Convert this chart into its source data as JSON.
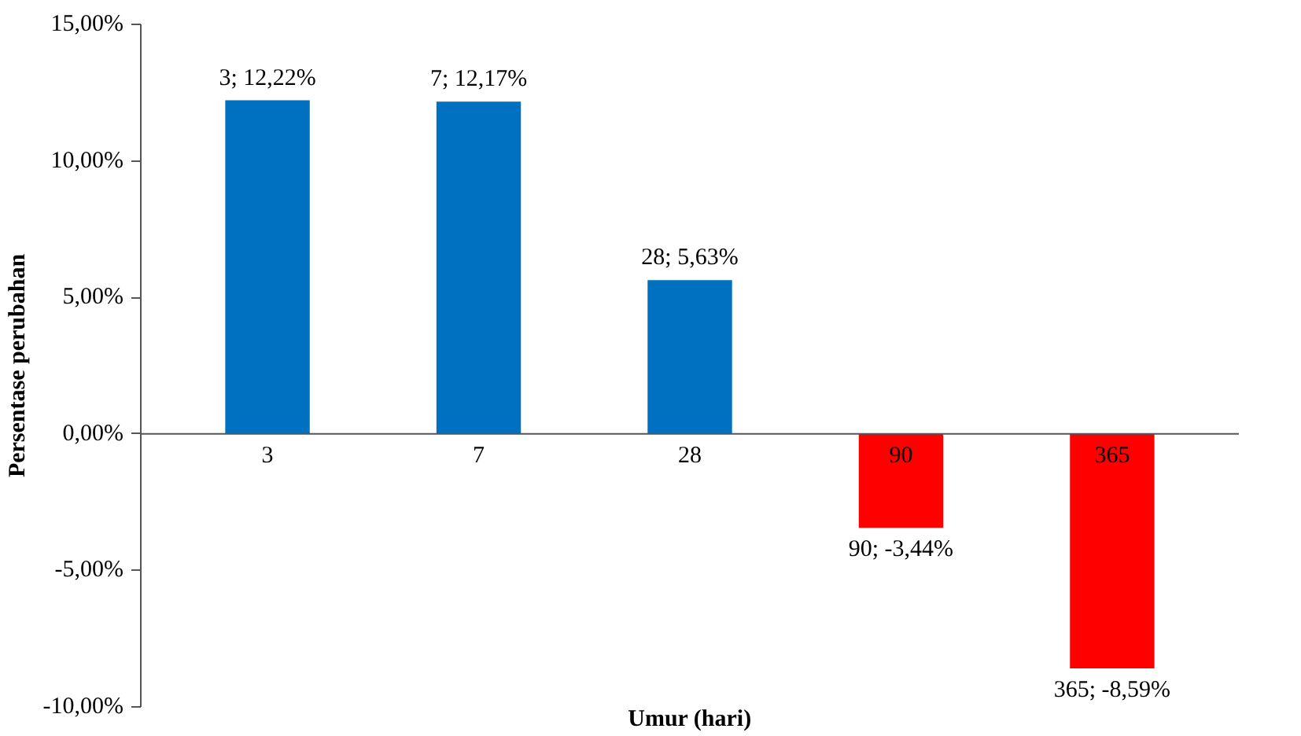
{
  "chart_data": {
    "type": "bar",
    "xlabel": "Umur (hari)",
    "ylabel": "Persentase perubahan",
    "categories": [
      "3",
      "7",
      "28",
      "90",
      "365"
    ],
    "values": [
      12.22,
      12.17,
      5.63,
      -3.44,
      -8.59
    ],
    "colors": [
      "#0070c0",
      "#0070c0",
      "#0070c0",
      "#ff0000",
      "#ff0000"
    ],
    "value_labels": [
      "3; 12,22%",
      "7; 12,17%",
      "28; 5,63%",
      "90; -3,44%",
      "365; -8,59%"
    ],
    "ylim": [
      -10,
      15
    ],
    "yticks": [
      {
        "value": -10,
        "label": "-10,00%"
      },
      {
        "value": -5,
        "label": "-5,00%"
      },
      {
        "value": 0,
        "label": "0,00%"
      },
      {
        "value": 5,
        "label": "5,00%"
      },
      {
        "value": 10,
        "label": "10,00%"
      },
      {
        "value": 15,
        "label": "15,00%"
      }
    ],
    "grid": false
  }
}
